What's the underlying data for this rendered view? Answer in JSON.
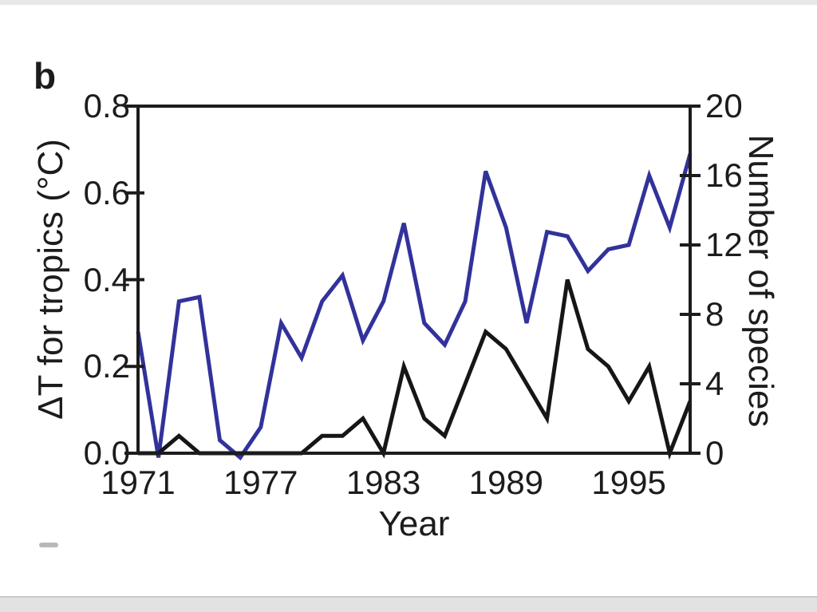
{
  "panel_label": "b",
  "chart_data": {
    "type": "line",
    "x": [
      1971,
      1972,
      1973,
      1974,
      1975,
      1976,
      1977,
      1978,
      1979,
      1980,
      1981,
      1982,
      1983,
      1984,
      1985,
      1986,
      1987,
      1988,
      1989,
      1990,
      1991,
      1992,
      1993,
      1994,
      1995,
      1996,
      1997,
      1998
    ],
    "series": [
      {
        "name": "delta-T for tropics",
        "axis": "left",
        "color": "#32329b",
        "values": [
          0.28,
          -0.01,
          0.35,
          0.36,
          0.03,
          -0.01,
          0.06,
          0.3,
          0.22,
          0.35,
          0.41,
          0.26,
          0.35,
          0.53,
          0.3,
          0.25,
          0.35,
          0.65,
          0.52,
          0.3,
          0.51,
          0.5,
          0.42,
          0.47,
          0.48,
          0.64,
          0.52,
          0.69
        ]
      },
      {
        "name": "Number of species",
        "axis": "right",
        "color": "#161616",
        "values": [
          0,
          0,
          1,
          0,
          0,
          0,
          0,
          0,
          0,
          1,
          1,
          2,
          0,
          5,
          2,
          1,
          4,
          7,
          6,
          4,
          2,
          10,
          6,
          5,
          3,
          5,
          0,
          3
        ]
      }
    ],
    "left_axis": {
      "label": "ΔT for tropics (°C)",
      "ticks": [
        "0.0",
        "0.2",
        "0.4",
        "0.6",
        "0.8"
      ],
      "range": [
        0,
        0.8
      ]
    },
    "right_axis": {
      "label": "Number of species",
      "ticks": [
        "0",
        "4",
        "8",
        "12",
        "16",
        "20"
      ],
      "range": [
        0,
        20
      ]
    },
    "x_axis": {
      "label": "Year",
      "ticks": [
        1971,
        1977,
        1983,
        1989,
        1995
      ],
      "range": [
        1971,
        1998
      ]
    },
    "grid": false,
    "legend": "none",
    "axis_color": "#1c1c1c"
  }
}
